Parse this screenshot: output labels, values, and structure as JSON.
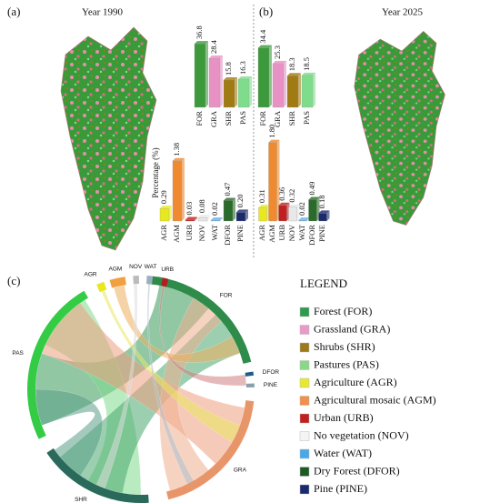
{
  "panels": [
    "(a)",
    "(b)",
    "(c)"
  ],
  "maps": [
    {
      "title": "Year 1990"
    },
    {
      "title": "Year 2025"
    }
  ],
  "chart_data": [
    {
      "type": "bar",
      "categories": [
        "FOR",
        "GRA",
        "SHR",
        "PAS"
      ],
      "values": [
        36.8,
        28.4,
        15.8,
        16.3
      ],
      "value_labels": [
        "36.8",
        "28.4",
        "15.8",
        "16.3"
      ],
      "colors": [
        "#3c9a3c",
        "#e891c4",
        "#a07a12",
        "#7fdc8c"
      ]
    },
    {
      "type": "bar",
      "ylabel": "Percentage (%)",
      "categories": [
        "AGR",
        "AGM",
        "URB",
        "NOV",
        "WAT",
        "DFOR",
        "PINE"
      ],
      "values": [
        0.29,
        1.38,
        0.03,
        0.08,
        0.02,
        0.47,
        0.2
      ],
      "value_labels": [
        "0.29",
        "1.38",
        "0.03",
        "0.08",
        "0.02",
        "0.47",
        "0.20"
      ],
      "colors": [
        "#e8e820",
        "#f08a30",
        "#c02020",
        "#e8e8e8",
        "#6ab4e8",
        "#2a6a2a",
        "#1a2a6a"
      ]
    },
    {
      "type": "bar",
      "categories": [
        "FOR",
        "GRA",
        "SHR",
        "PAS"
      ],
      "values": [
        34.4,
        25.3,
        18.3,
        18.5
      ],
      "value_labels": [
        "34.4",
        "25.3",
        "18.3",
        "18.5"
      ],
      "colors": [
        "#3c9a3c",
        "#e891c4",
        "#a07a12",
        "#7fdc8c"
      ]
    },
    {
      "type": "bar",
      "categories": [
        "AGR",
        "AGM",
        "URB",
        "NOV",
        "WAT",
        "DFOR",
        "PINE"
      ],
      "values": [
        0.31,
        1.8,
        0.36,
        0.32,
        0.02,
        0.49,
        0.18
      ],
      "value_labels": [
        "0.31",
        "1.80",
        "0.36",
        "0.32",
        "0.02",
        "0.49",
        "0.18"
      ],
      "colors": [
        "#e8e820",
        "#f08a30",
        "#c02020",
        "#e8e8e8",
        "#6ab4e8",
        "#2a6a2a",
        "#1a2a6a"
      ]
    }
  ],
  "chord": {
    "labels": [
      "FOR",
      "GRA",
      "SHR",
      "PAS",
      "AGR",
      "AGM",
      "NOV",
      "WAT",
      "URB",
      "DFOR",
      "PINE"
    ],
    "colors": [
      "#2e8b4a",
      "#e8956a",
      "#2a6a5a",
      "#33cc44",
      "#e8e820",
      "#f0a040",
      "#bbbbbb",
      "#9ab0c0",
      "#b02020",
      "#1e5a8a",
      "#8aa0b0"
    ]
  },
  "legend": {
    "title": "LEGEND",
    "items": [
      {
        "label": "Forest (FOR)",
        "color": "#2e9a4e"
      },
      {
        "label": "Grassland (GRA)",
        "color": "#e89ac8"
      },
      {
        "label": "Shrubs (SHR)",
        "color": "#9c7a1a"
      },
      {
        "label": "Pastures (PAS)",
        "color": "#88d888"
      },
      {
        "label": "Agriculture (AGR)",
        "color": "#e8e830"
      },
      {
        "label": "Agricultural mosaic (AGM)",
        "color": "#f0904a"
      },
      {
        "label": "Urban (URB)",
        "color": "#c02020"
      },
      {
        "label": "No vegetation (NOV)",
        "color": "#f4f4f4"
      },
      {
        "label": "Water (WAT)",
        "color": "#4aa8e8"
      },
      {
        "label": "Dry Forest (DFOR)",
        "color": "#1e5a24"
      },
      {
        "label": "Pine (PINE)",
        "color": "#1a2a70"
      }
    ]
  }
}
